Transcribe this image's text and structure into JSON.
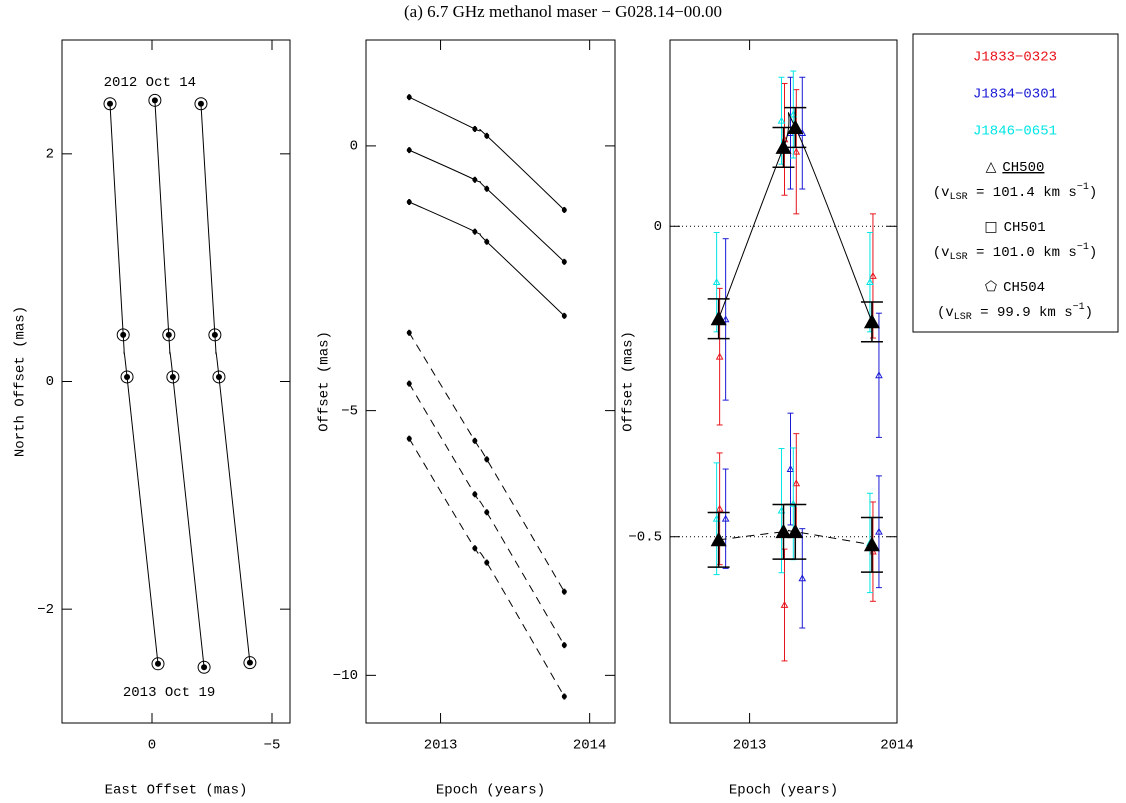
{
  "title": "(a) 6.7 GHz methanol maser − G028.14−00.00",
  "chart_data": [
    {
      "type": "scatter",
      "xlabel": "East Offset (mas)",
      "ylabel": "North Offset (mas)",
      "xlim": [
        3.75,
        -5.75
      ],
      "ylim": [
        -3,
        3
      ],
      "xticks": [
        0,
        {
          "value": -5,
          "label": "−5"
        }
      ],
      "yticks": [
        {
          "value": -2,
          "label": "−2"
        },
        0,
        2
      ],
      "annotations": [
        "2012 Oct 14",
        "2013 Oct 19"
      ],
      "series": [
        {
          "x": [
            1.75,
            1.2,
            1.04,
            -0.25
          ],
          "values": [
            2.44,
            0.41,
            0.04,
            -2.48
          ]
        },
        {
          "x": [
            -0.12,
            -0.7,
            -0.87,
            -2.17
          ],
          "values": [
            2.47,
            0.41,
            0.04,
            -2.51
          ]
        },
        {
          "x": [
            -2.04,
            -2.62,
            -2.79,
            -4.08
          ],
          "values": [
            2.44,
            0.41,
            0.04,
            -2.47
          ]
        }
      ]
    },
    {
      "type": "line",
      "xlabel": "Epoch (years)",
      "ylabel": "Offset (mas)",
      "x": [
        2012.79,
        2013.23,
        2013.31,
        2013.83
      ],
      "xlim": [
        2012.5,
        2014.17
      ],
      "ylim": [
        -10.9,
        2
      ],
      "xticks": [
        2013,
        2014
      ],
      "yticks": [
        {
          "value": -10,
          "label": "−10"
        },
        {
          "value": -5,
          "label": "−5"
        },
        0
      ],
      "series": [
        {
          "values": [
            0.92,
            0.32,
            0.19,
            -1.21
          ],
          "dashed": false
        },
        {
          "values": [
            -0.08,
            -0.64,
            -0.81,
            -2.19
          ],
          "dashed": false
        },
        {
          "values": [
            -1.06,
            -1.62,
            -1.81,
            -3.21
          ],
          "dashed": false
        },
        {
          "values": [
            -3.53,
            -5.57,
            -5.92,
            -8.42
          ],
          "dashed": true
        },
        {
          "values": [
            -4.49,
            -6.58,
            -6.92,
            -9.43
          ],
          "dashed": true
        },
        {
          "values": [
            -5.53,
            -7.6,
            -7.87,
            -10.4
          ],
          "dashed": true
        }
      ]
    },
    {
      "type": "errorbar",
      "xlabel": "Epoch (years)",
      "ylabel": "Offset (mas)",
      "x": [
        2012.79,
        2013.23,
        2013.31,
        2013.83
      ],
      "xlim": [
        2012.46,
        2014
      ],
      "ylim": [
        -0.8,
        0.3
      ],
      "xticks": [
        2013,
        2014
      ],
      "yticks": [
        {
          "value": -0.5,
          "label": "−0.5"
        },
        0
      ],
      "reference_lines": true,
      "fit_color": "#000000",
      "series": [
        {
          "name": "J1833−0323",
          "color": "#e8141c",
          "channels": [
            {
              "values": [
                -0.21,
                0.14,
                0.12,
                -0.08
              ],
              "errors": [
                0.11,
                0.09,
                0.1,
                0.1
              ]
            },
            {
              "values": [
                -0.455,
                -0.61,
                -0.414,
                -0.524
              ],
              "errors": [
                0.09,
                0.09,
                0.08,
                0.08
              ]
            }
          ]
        },
        {
          "name": "J1834−0301",
          "color": "#1a1ad6",
          "channels": [
            {
              "values": [
                -0.15,
                0.15,
                0.15,
                -0.24
              ],
              "errors": [
                0.13,
                0.09,
                0.09,
                0.1
              ]
            },
            {
              "values": [
                -0.471,
                -0.391,
                -0.567,
                -0.492
              ],
              "errors": [
                0.08,
                0.09,
                0.08,
                0.09
              ]
            }
          ]
        },
        {
          "name": "J1846−0651",
          "color": "#00e5e5",
          "channels": [
            {
              "values": [
                -0.09,
                0.17,
                0.18,
                -0.09
              ],
              "errors": [
                0.08,
                0.07,
                0.07,
                0.08
              ]
            },
            {
              "values": [
                -0.471,
                -0.458,
                -0.447,
                -0.51
              ],
              "errors": [
                0.09,
                0.1,
                0.09,
                0.08
              ]
            }
          ]
        }
      ],
      "fits": [
        {
          "values": [
            -0.149,
            0.127,
            0.159,
            -0.154
          ],
          "errors": [
            0.032,
            0.032,
            0.032,
            0.032
          ],
          "dashed": false
        },
        {
          "values": [
            -0.505,
            -0.492,
            -0.492,
            -0.513
          ],
          "errors": [
            0.044,
            0.044,
            0.044,
            0.044
          ],
          "dashed": true
        }
      ],
      "legend": {
        "channels": [
          {
            "symbol": "△",
            "name": "CH500",
            "underlined": true,
            "vlsr": [
              "(v",
              "LSR",
              " = 101.4 km s",
              "−1",
              ")"
            ]
          },
          {
            "symbol": "□",
            "name": "CH501",
            "underlined": false,
            "vlsr": [
              "(v",
              "LSR",
              " = 101.0 km s",
              "−1",
              ")"
            ]
          },
          {
            "symbol": "⬠",
            "name": "CH504",
            "underlined": false,
            "vlsr": [
              "(v",
              "LSR",
              " = 99.9 km s",
              "−1",
              ")"
            ]
          }
        ]
      }
    }
  ]
}
